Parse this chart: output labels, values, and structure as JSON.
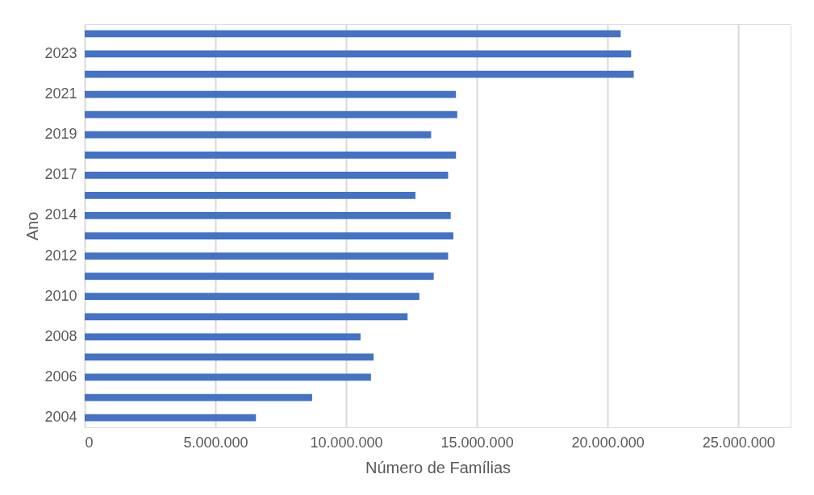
{
  "chart_data": {
    "type": "bar",
    "orientation": "horizontal",
    "xlabel": "Número de Famílias",
    "ylabel": "Ano",
    "categories": [
      null,
      "2023",
      null,
      "2021",
      null,
      "2019",
      null,
      "2017",
      null,
      "2014",
      null,
      "2012",
      null,
      "2010",
      null,
      "2008",
      null,
      "2006",
      null,
      "2004"
    ],
    "values": [
      20500000,
      20900000,
      21000000,
      14200000,
      14250000,
      13250000,
      14200000,
      13900000,
      12650000,
      14000000,
      14100000,
      13900000,
      13350000,
      12800000,
      12350000,
      10550000,
      11050000,
      10950000,
      8700000,
      6550000
    ],
    "color": "#4472c4",
    "xlim": [
      0,
      27000000
    ],
    "xticks": [
      0,
      {
        "value": 5000000,
        "label": "5.000.000"
      },
      {
        "value": 10000000,
        "label": "10.000.000"
      },
      {
        "value": 15000000,
        "label": "15.000.000"
      },
      {
        "value": 20000000,
        "label": "20.000.000"
      },
      {
        "value": 25000000,
        "label": "25.000.000"
      }
    ],
    "grid": "x"
  }
}
